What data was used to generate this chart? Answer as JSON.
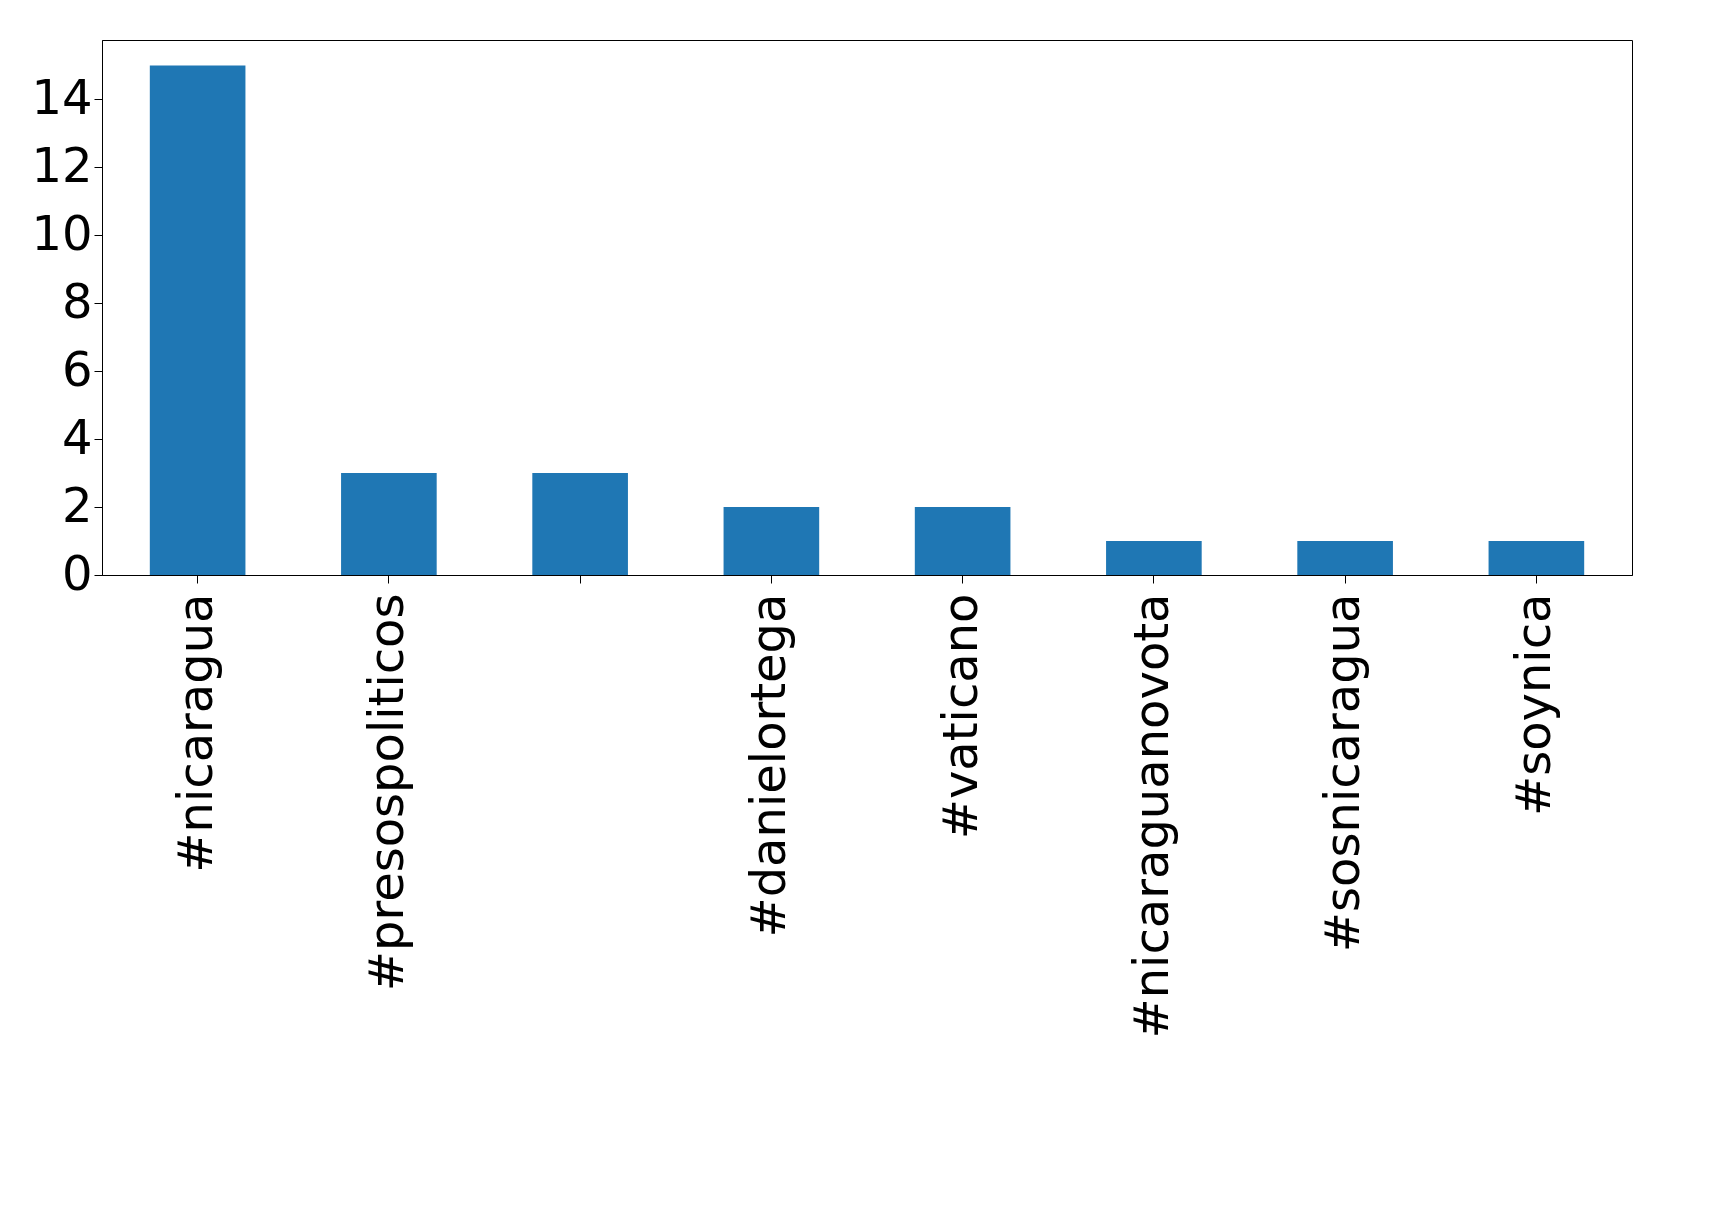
{
  "chart_data": {
    "type": "bar",
    "categories": [
      "#nicaragua",
      "#presospoliticos",
      null,
      "#danielortega",
      "#vaticano",
      "#nicaraguanovota",
      "#sosnicaragua",
      "#soynica"
    ],
    "values": [
      15,
      3,
      3,
      2,
      2,
      1,
      1,
      1
    ],
    "color": "#1f77b4",
    "ylim": [
      0,
      15.75
    ],
    "yticks": [
      0,
      2,
      4,
      6,
      8,
      10,
      12,
      14
    ],
    "grid": false
  }
}
